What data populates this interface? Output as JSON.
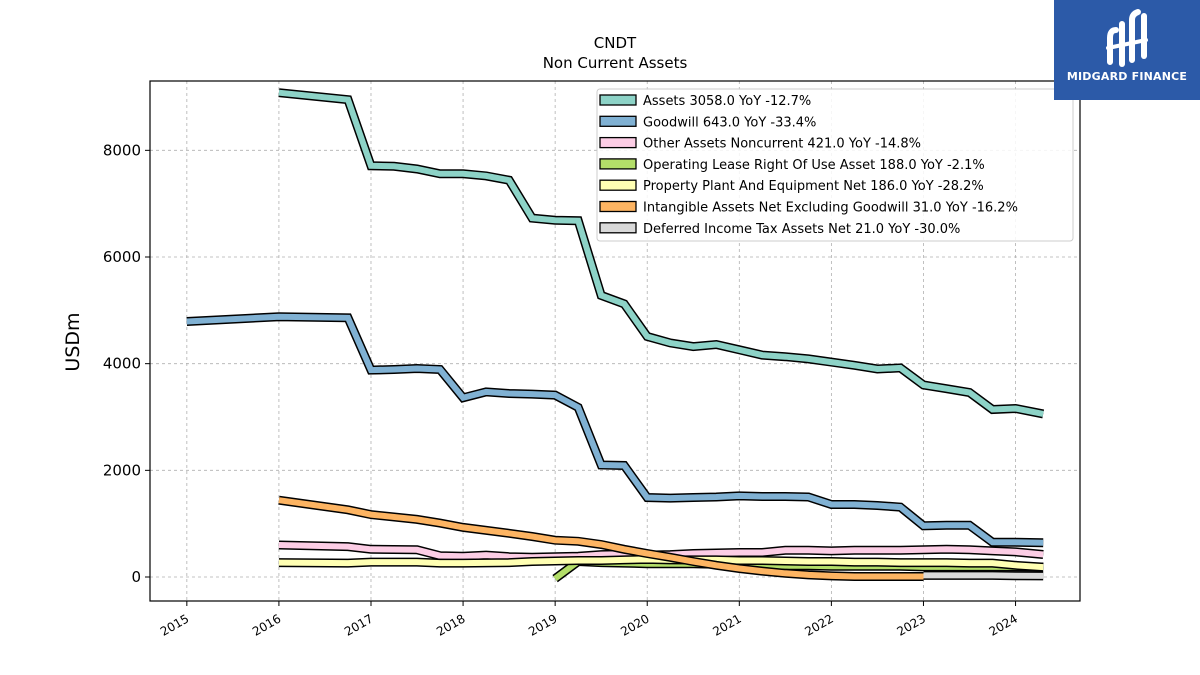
{
  "logo": {
    "text": "MIDGARD FINANCE",
    "background": "#2c5aa8",
    "mark_color": "#ffffff"
  },
  "chart_data": {
    "type": "line",
    "title": "CNDT",
    "subtitle": "Non Current  Assets",
    "ylabel": "USDm",
    "xlabel": "",
    "xlim": [
      2014.6,
      2024.7
    ],
    "ylim": [
      -450,
      9300
    ],
    "xticks": [
      "2015",
      "2016",
      "2017",
      "2018",
      "2019",
      "2020",
      "2021",
      "2022",
      "2023",
      "2024"
    ],
    "yticks": [
      "0",
      "2000",
      "4000",
      "6000",
      "8000"
    ],
    "grid": true,
    "legend_position": "top-right",
    "series": [
      {
        "name": "Assets  3058.0 YoY -12.7%",
        "color": "#8dd3c7",
        "points": [
          [
            2016.0,
            9080
          ],
          [
            2016.75,
            8950
          ],
          [
            2017.0,
            7710
          ],
          [
            2017.25,
            7700
          ],
          [
            2017.5,
            7650
          ],
          [
            2017.75,
            7560
          ],
          [
            2018.0,
            7560
          ],
          [
            2018.25,
            7520
          ],
          [
            2018.5,
            7440
          ],
          [
            2018.75,
            6730
          ],
          [
            2019.0,
            6690
          ],
          [
            2019.25,
            6680
          ],
          [
            2019.5,
            5280
          ],
          [
            2019.75,
            5120
          ],
          [
            2020.0,
            4510
          ],
          [
            2020.25,
            4390
          ],
          [
            2020.5,
            4320
          ],
          [
            2020.75,
            4360
          ],
          [
            2021.0,
            4260
          ],
          [
            2021.25,
            4160
          ],
          [
            2021.5,
            4130
          ],
          [
            2021.75,
            4090
          ],
          [
            2022.0,
            4030
          ],
          [
            2022.25,
            3970
          ],
          [
            2022.5,
            3900
          ],
          [
            2022.75,
            3920
          ],
          [
            2023.0,
            3600
          ],
          [
            2023.25,
            3530
          ],
          [
            2023.5,
            3460
          ],
          [
            2023.75,
            3140
          ],
          [
            2024.0,
            3160
          ],
          [
            2024.3,
            3058
          ]
        ]
      },
      {
        "name": "Goodwill  643.0 YoY -33.4%",
        "color": "#80b1d3",
        "points": [
          [
            2015.0,
            4790
          ],
          [
            2016.0,
            4880
          ],
          [
            2016.75,
            4860
          ],
          [
            2017.0,
            3880
          ],
          [
            2017.25,
            3890
          ],
          [
            2017.5,
            3910
          ],
          [
            2017.75,
            3890
          ],
          [
            2018.0,
            3360
          ],
          [
            2018.25,
            3470
          ],
          [
            2018.5,
            3440
          ],
          [
            2018.75,
            3430
          ],
          [
            2019.0,
            3410
          ],
          [
            2019.25,
            3180
          ],
          [
            2019.5,
            2100
          ],
          [
            2019.75,
            2090
          ],
          [
            2020.0,
            1490
          ],
          [
            2020.25,
            1480
          ],
          [
            2020.5,
            1490
          ],
          [
            2020.75,
            1500
          ],
          [
            2021.0,
            1520
          ],
          [
            2021.25,
            1510
          ],
          [
            2021.5,
            1510
          ],
          [
            2021.75,
            1500
          ],
          [
            2022.0,
            1360
          ],
          [
            2022.25,
            1360
          ],
          [
            2022.5,
            1340
          ],
          [
            2022.75,
            1310
          ],
          [
            2023.0,
            960
          ],
          [
            2023.25,
            970
          ],
          [
            2023.5,
            970
          ],
          [
            2023.75,
            650
          ],
          [
            2024.0,
            650
          ],
          [
            2024.3,
            643
          ]
        ]
      },
      {
        "name": "Other Assets Noncurrent  421.0 YoY -14.8%",
        "color": "#fccde5",
        "points": [
          [
            2016.0,
            600
          ],
          [
            2016.75,
            570
          ],
          [
            2017.0,
            520
          ],
          [
            2017.5,
            510
          ],
          [
            2017.75,
            400
          ],
          [
            2018.0,
            390
          ],
          [
            2018.25,
            410
          ],
          [
            2018.5,
            380
          ],
          [
            2018.75,
            370
          ],
          [
            2019.0,
            380
          ],
          [
            2019.25,
            390
          ],
          [
            2019.5,
            420
          ],
          [
            2019.75,
            430
          ],
          [
            2020.0,
            410
          ],
          [
            2020.25,
            420
          ],
          [
            2020.5,
            440
          ],
          [
            2020.75,
            450
          ],
          [
            2021.0,
            460
          ],
          [
            2021.25,
            460
          ],
          [
            2021.5,
            500
          ],
          [
            2021.75,
            500
          ],
          [
            2022.0,
            490
          ],
          [
            2022.25,
            500
          ],
          [
            2022.5,
            500
          ],
          [
            2022.75,
            500
          ],
          [
            2023.0,
            510
          ],
          [
            2023.25,
            520
          ],
          [
            2023.5,
            510
          ],
          [
            2023.75,
            490
          ],
          [
            2024.0,
            470
          ],
          [
            2024.3,
            421
          ]
        ]
      },
      {
        "name": "Operating Lease Right Of Use Asset  188.0 YoY -2.1%",
        "color": "#b3de69",
        "points": [
          [
            2019.0,
            -30
          ],
          [
            2019.25,
            290
          ],
          [
            2019.5,
            270
          ],
          [
            2019.75,
            260
          ],
          [
            2020.0,
            250
          ],
          [
            2020.25,
            250
          ],
          [
            2020.5,
            250
          ],
          [
            2020.75,
            240
          ],
          [
            2021.0,
            230
          ],
          [
            2021.25,
            220
          ],
          [
            2021.5,
            210
          ],
          [
            2021.75,
            210
          ],
          [
            2022.0,
            200
          ],
          [
            2022.25,
            200
          ],
          [
            2022.5,
            200
          ],
          [
            2022.75,
            200
          ],
          [
            2023.0,
            190
          ],
          [
            2023.25,
            190
          ],
          [
            2023.5,
            190
          ],
          [
            2023.75,
            190
          ],
          [
            2024.0,
            190
          ],
          [
            2024.3,
            188
          ]
        ]
      },
      {
        "name": "Property Plant And Equipment Net  186.0 YoY -28.2%",
        "color": "#ffffb3",
        "points": [
          [
            2016.0,
            270
          ],
          [
            2016.75,
            260
          ],
          [
            2017.0,
            280
          ],
          [
            2017.5,
            280
          ],
          [
            2017.75,
            260
          ],
          [
            2018.0,
            260
          ],
          [
            2018.5,
            270
          ],
          [
            2018.75,
            290
          ],
          [
            2019.0,
            300
          ],
          [
            2019.25,
            310
          ],
          [
            2019.5,
            310
          ],
          [
            2019.75,
            320
          ],
          [
            2020.0,
            330
          ],
          [
            2020.25,
            320
          ],
          [
            2020.5,
            320
          ],
          [
            2020.75,
            320
          ],
          [
            2021.0,
            310
          ],
          [
            2021.25,
            310
          ],
          [
            2021.5,
            300
          ],
          [
            2021.75,
            290
          ],
          [
            2022.0,
            290
          ],
          [
            2022.25,
            280
          ],
          [
            2022.5,
            280
          ],
          [
            2022.75,
            270
          ],
          [
            2023.0,
            270
          ],
          [
            2023.25,
            270
          ],
          [
            2023.5,
            260
          ],
          [
            2023.75,
            260
          ],
          [
            2024.0,
            220
          ],
          [
            2024.3,
            186
          ]
        ]
      },
      {
        "name": "Intangible Assets Net Excluding Goodwill  31.0 YoY -16.2%",
        "color": "#fdb462",
        "points": [
          [
            2016.0,
            1440
          ],
          [
            2016.75,
            1260
          ],
          [
            2017.0,
            1170
          ],
          [
            2017.5,
            1080
          ],
          [
            2017.75,
            1010
          ],
          [
            2018.0,
            930
          ],
          [
            2018.5,
            820
          ],
          [
            2018.75,
            760
          ],
          [
            2019.0,
            690
          ],
          [
            2019.25,
            670
          ],
          [
            2019.5,
            610
          ],
          [
            2019.75,
            520
          ],
          [
            2020.0,
            440
          ],
          [
            2020.25,
            370
          ],
          [
            2020.5,
            290
          ],
          [
            2020.75,
            220
          ],
          [
            2021.0,
            160
          ],
          [
            2021.25,
            110
          ],
          [
            2021.5,
            70
          ],
          [
            2021.75,
            40
          ],
          [
            2022.0,
            20
          ],
          [
            2022.25,
            10
          ],
          [
            2022.5,
            10
          ],
          [
            2022.75,
            10
          ],
          [
            2023.0,
            10
          ]
        ]
      },
      {
        "name": "Deferred Income Tax Assets Net  21.0 YoY -30.0%",
        "color": "#d9d9d9",
        "points": [
          [
            2023.0,
            30
          ],
          [
            2023.25,
            30
          ],
          [
            2023.5,
            30
          ],
          [
            2023.75,
            30
          ],
          [
            2024.0,
            25
          ],
          [
            2024.3,
            21
          ]
        ]
      }
    ]
  }
}
